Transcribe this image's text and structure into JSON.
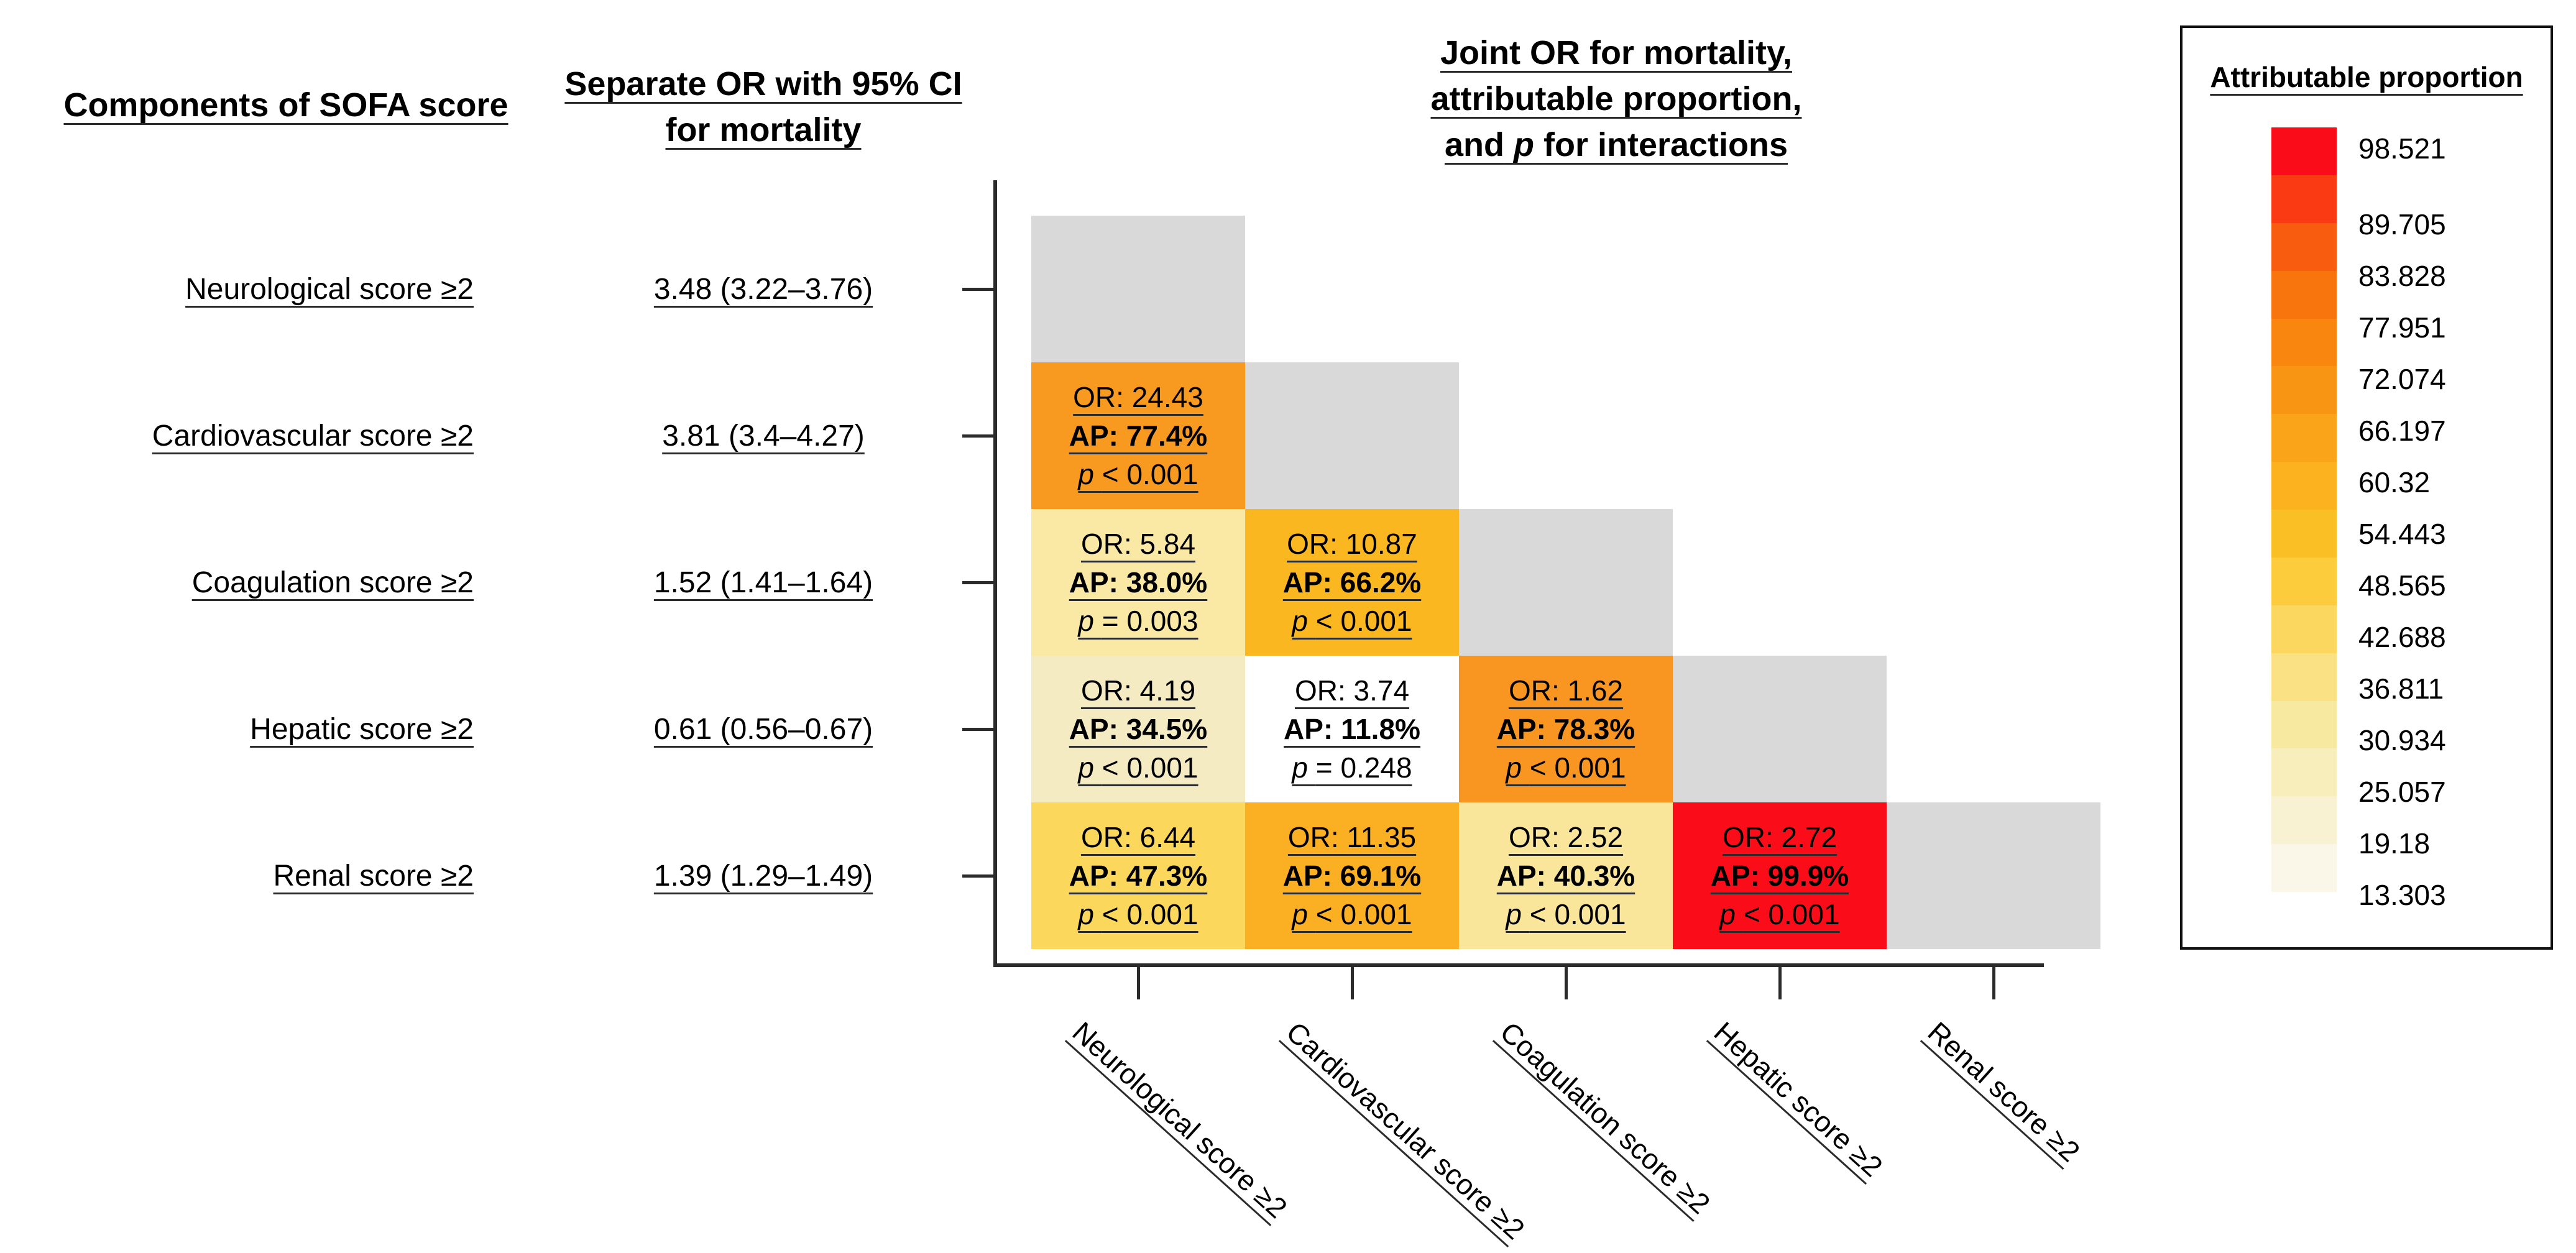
{
  "headers": {
    "col1": "Components of SOFA score",
    "col2_line1": "Separate OR with 95% CI",
    "col2_line2": "for mortality",
    "joint_line1": "Joint OR for mortality,",
    "joint_line2": "attributable proportion,",
    "joint_line3_pre": "and",
    "joint_line3_p": "p",
    "joint_line3_post": "for interactions"
  },
  "rows": [
    {
      "label": "Neurological score ≥2",
      "or_ci": "3.48 (3.22–3.76)"
    },
    {
      "label": "Cardiovascular score ≥2",
      "or_ci": "3.81 (3.4–4.27)"
    },
    {
      "label": "Coagulation score ≥2",
      "or_ci": "1.52 (1.41–1.64)"
    },
    {
      "label": "Hepatic score ≥2",
      "or_ci": "0.61 (0.56–0.67)"
    },
    {
      "label": "Renal score ≥2",
      "or_ci": "1.39 (1.29–1.49)"
    }
  ],
  "x_labels": [
    "Neurological score ≥2",
    "Cardiovascular score ≥2",
    "Coagulation score ≥2",
    "Hepatic score ≥2",
    "Renal score ≥2"
  ],
  "cells": [
    {
      "or": "OR: 24.43",
      "ap": "AP: 77.4%",
      "p_label": "p",
      "p_rest": "< 0.001",
      "color": "#F89920"
    },
    {
      "or": "OR: 5.84",
      "ap": "AP: 38.0%",
      "p_label": "p",
      "p_rest": "= 0.003",
      "color": "#F9E9A4"
    },
    {
      "or": "OR: 10.87",
      "ap": "AP: 66.2%",
      "p_label": "p",
      "p_rest": "< 0.001",
      "color": "#FBB71F"
    },
    {
      "or": "OR: 4.19",
      "ap": "AP: 34.5%",
      "p_label": "p",
      "p_rest": "< 0.001",
      "color": "#F5EBC2"
    },
    {
      "or": "OR: 3.74",
      "ap": "AP: 11.8%",
      "p_label": "p",
      "p_rest": "= 0.248",
      "color": "#FFFFFF"
    },
    {
      "or": "OR: 1.62",
      "ap": "AP: 78.3%",
      "p_label": "p",
      "p_rest": "< 0.001",
      "color": "#F89621"
    },
    {
      "or": "OR: 6.44",
      "ap": "AP: 47.3%",
      "p_label": "p",
      "p_rest": "< 0.001",
      "color": "#FBD85C"
    },
    {
      "or": "OR: 11.35",
      "ap": "AP: 69.1%",
      "p_label": "p",
      "p_rest": "< 0.001",
      "color": "#FBB023"
    },
    {
      "or": "OR: 2.52",
      "ap": "AP: 40.3%",
      "p_label": "p",
      "p_rest": "< 0.001",
      "color": "#F9E69B"
    },
    {
      "or": "OR: 2.72",
      "ap": "AP: 99.9%",
      "p_label": "p",
      "p_rest": "< 0.001",
      "color": "#FA0D19"
    }
  ],
  "diagonal_color": "#D9D9D9",
  "legend": {
    "title": "Attributable proportion",
    "values": [
      "98.521",
      "89.705",
      "83.828",
      "77.951",
      "72.074",
      "66.197",
      "60.32",
      "54.443",
      "48.565",
      "42.688",
      "36.811",
      "30.934",
      "25.057",
      "19.18",
      "13.303"
    ],
    "colors": [
      "#FA0D19",
      "#F93A12",
      "#F85C0F",
      "#F8740D",
      "#F8860F",
      "#F89614",
      "#FAA419",
      "#FBB21E",
      "#FBBF26",
      "#FCCC3C",
      "#FBD75F",
      "#FAE183",
      "#F8E9A1",
      "#F7EEBC",
      "#F8F2D3",
      "#FBF7E8"
    ]
  },
  "chart_data": {
    "type": "heatmap",
    "title": "Joint OR for mortality, attributable proportion, and p for interactions",
    "rows": [
      "Neurological score ≥2",
      "Cardiovascular score ≥2",
      "Coagulation score ≥2",
      "Hepatic score ≥2",
      "Renal score ≥2"
    ],
    "columns": [
      "Neurological score ≥2",
      "Cardiovascular score ≥2",
      "Coagulation score ≥2",
      "Hepatic score ≥2",
      "Renal score ≥2"
    ],
    "separate_or": [
      {
        "component": "Neurological score ≥2",
        "or": 3.48,
        "ci_low": 3.22,
        "ci_high": 3.76
      },
      {
        "component": "Cardiovascular score ≥2",
        "or": 3.81,
        "ci_low": 3.4,
        "ci_high": 4.27
      },
      {
        "component": "Coagulation score ≥2",
        "or": 1.52,
        "ci_low": 1.41,
        "ci_high": 1.64
      },
      {
        "component": "Hepatic score ≥2",
        "or": 0.61,
        "ci_low": 0.56,
        "ci_high": 0.67
      },
      {
        "component": "Renal score ≥2",
        "or": 1.39,
        "ci_low": 1.29,
        "ci_high": 1.49
      }
    ],
    "cells": [
      {
        "row": "Cardiovascular score ≥2",
        "col": "Neurological score ≥2",
        "joint_or": 24.43,
        "ap_percent": 77.4,
        "p": "< 0.001"
      },
      {
        "row": "Coagulation score ≥2",
        "col": "Neurological score ≥2",
        "joint_or": 5.84,
        "ap_percent": 38.0,
        "p": "= 0.003"
      },
      {
        "row": "Coagulation score ≥2",
        "col": "Cardiovascular score ≥2",
        "joint_or": 10.87,
        "ap_percent": 66.2,
        "p": "< 0.001"
      },
      {
        "row": "Hepatic score ≥2",
        "col": "Neurological score ≥2",
        "joint_or": 4.19,
        "ap_percent": 34.5,
        "p": "< 0.001"
      },
      {
        "row": "Hepatic score ≥2",
        "col": "Cardiovascular score ≥2",
        "joint_or": 3.74,
        "ap_percent": 11.8,
        "p": "= 0.248"
      },
      {
        "row": "Hepatic score ≥2",
        "col": "Coagulation score ≥2",
        "joint_or": 1.62,
        "ap_percent": 78.3,
        "p": "< 0.001"
      },
      {
        "row": "Renal score ≥2",
        "col": "Neurological score ≥2",
        "joint_or": 6.44,
        "ap_percent": 47.3,
        "p": "< 0.001"
      },
      {
        "row": "Renal score ≥2",
        "col": "Cardiovascular score ≥2",
        "joint_or": 11.35,
        "ap_percent": 69.1,
        "p": "< 0.001"
      },
      {
        "row": "Renal score ≥2",
        "col": "Coagulation score ≥2",
        "joint_or": 2.52,
        "ap_percent": 40.3,
        "p": "< 0.001"
      },
      {
        "row": "Renal score ≥2",
        "col": "Hepatic score ≥2",
        "joint_or": 2.72,
        "ap_percent": 99.9,
        "p": "< 0.001"
      }
    ],
    "legend": {
      "title": "Attributable proportion",
      "tick_values": [
        98.521,
        89.705,
        83.828,
        77.951,
        72.074,
        66.197,
        60.32,
        54.443,
        48.565,
        42.688,
        36.811,
        30.934,
        25.057,
        19.18,
        13.303
      ]
    }
  }
}
